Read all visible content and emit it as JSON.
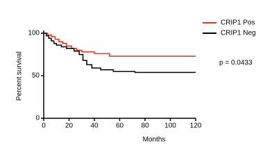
{
  "chart_data": {
    "type": "line",
    "step": true,
    "xlabel": "Months",
    "ylabel": "Percent survival",
    "annotation": "p = 0.0433",
    "xlim": [
      0,
      120
    ],
    "xticks": [
      0,
      20,
      40,
      60,
      80,
      100,
      120
    ],
    "ylim": [
      0,
      100
    ],
    "yticks": [
      0,
      50,
      100
    ],
    "legend": "top-right",
    "series": [
      {
        "name": "CRIP1 Pos",
        "color": "#ff2a1a",
        "x": [
          0,
          3,
          6,
          9,
          12,
          15,
          18,
          22,
          26,
          30,
          40,
          52,
          120
        ],
        "values": [
          100,
          98,
          96,
          93,
          90,
          88,
          85,
          82,
          80,
          78,
          76,
          73,
          73
        ]
      },
      {
        "name": "CRIP1 Neg",
        "color": "#000000",
        "x": [
          0,
          2,
          4,
          6,
          8,
          10,
          14,
          18,
          24,
          28,
          31,
          34,
          38,
          45,
          55,
          72,
          120
        ],
        "values": [
          100,
          97,
          94,
          91,
          88,
          86,
          84,
          82,
          79,
          75,
          68,
          63,
          59,
          57,
          55,
          54,
          54
        ]
      }
    ]
  }
}
